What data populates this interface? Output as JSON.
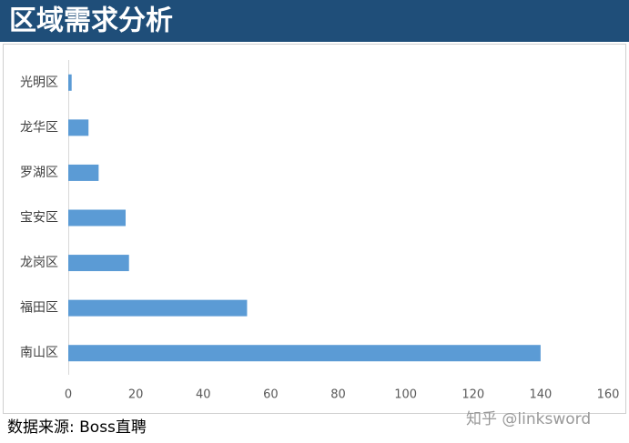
{
  "header": {
    "title": "区域需求分析"
  },
  "chart_data": {
    "type": "bar",
    "orientation": "horizontal",
    "categories": [
      "光明区",
      "龙华区",
      "罗湖区",
      "宝安区",
      "龙岗区",
      "福田区",
      "南山区"
    ],
    "values": [
      1,
      6,
      9,
      17,
      18,
      53,
      140
    ],
    "color": "#5b9bd5",
    "xlim": [
      0,
      160
    ],
    "xticks": [
      0,
      20,
      40,
      60,
      80,
      100,
      120,
      140,
      160
    ],
    "grid": false
  },
  "footer": {
    "source": "数据来源:  Boss直聘",
    "watermark": "知乎 @linksword"
  }
}
